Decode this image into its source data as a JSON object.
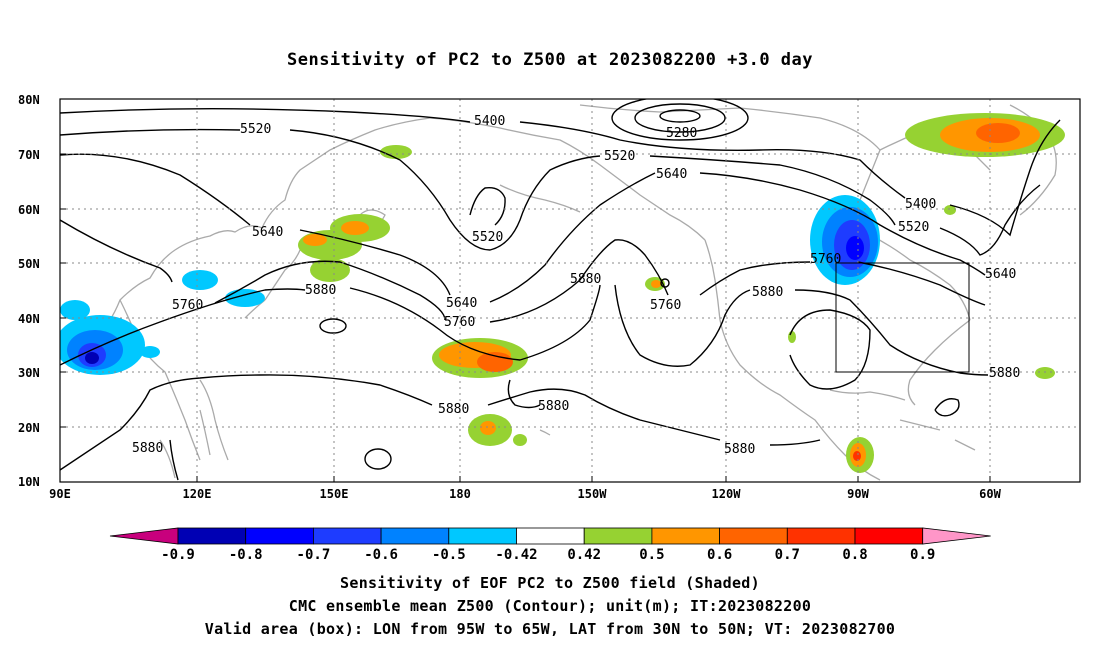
{
  "title": "Sensitivity of PC2 to Z500 at 2023082200 +3.0 day",
  "map": {
    "lat_ticks": [
      "80N",
      "70N",
      "60N",
      "50N",
      "40N",
      "30N",
      "20N",
      "10N"
    ],
    "lon_ticks": [
      "90E",
      "120E",
      "150E",
      "180",
      "150W",
      "120W",
      "90W",
      "60W"
    ],
    "lat_range": [
      10,
      80
    ],
    "lon_range_east": [
      90,
      312
    ],
    "gridlines": "dotted",
    "valid_box": {
      "lon_min": -95,
      "lon_max": -65,
      "lat_min": 30,
      "lat_max": 50
    }
  },
  "contour_labels": [
    "5520",
    "5400",
    "5280",
    "5520",
    "5640",
    "5400",
    "5520",
    "5640",
    "5520",
    "5640",
    "5760",
    "5880",
    "5640",
    "5760",
    "5880",
    "5760",
    "5880",
    "5760",
    "5880",
    "5880",
    "5880",
    "5880",
    "5880"
  ],
  "colorbar": {
    "labels": [
      "-0.9",
      "-0.8",
      "-0.7",
      "-0.6",
      "-0.5",
      "-0.42",
      "0.42",
      "0.5",
      "0.6",
      "0.7",
      "0.8",
      "0.9"
    ],
    "colors": [
      "#c8007d",
      "#0000b4",
      "#0000ff",
      "#1e3cff",
      "#0082ff",
      "#00c8ff",
      "#ffffff",
      "#96d232",
      "#ff9600",
      "#ff6400",
      "#ff3200",
      "#ff0000",
      "#ff96c8"
    ]
  },
  "caption": {
    "line1": "Sensitivity of EOF PC2 to Z500 field (Shaded)",
    "line2": "CMC ensemble mean Z500 (Contour); unit(m); IT:2023082200",
    "line3": "Valid area (box): LON from 95W to 65W, LAT from 30N to 50N; VT: 2023082700"
  }
}
